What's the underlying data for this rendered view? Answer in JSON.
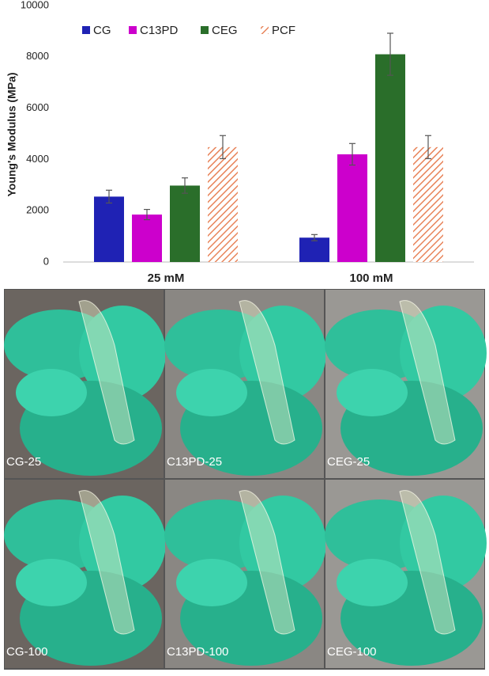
{
  "chart_data": {
    "type": "bar",
    "y_label": "Young's Modulus (MPa)",
    "categories": [
      "25 mM",
      "100 mM"
    ],
    "series": [
      {
        "name": "CG",
        "color": "#1f22b4",
        "values": [
          2550,
          950
        ],
        "errors": [
          250,
          120
        ]
      },
      {
        "name": "C13PD",
        "color": "#cc00cc",
        "values": [
          1850,
          4200
        ],
        "errors": [
          200,
          420
        ]
      },
      {
        "name": "CEG",
        "color": "#2a6e2a",
        "values": [
          2980,
          8100
        ],
        "errors": [
          300,
          820
        ]
      },
      {
        "name": "PCF",
        "color": "#e8845a",
        "hatch": true,
        "values": [
          4480,
          4480
        ],
        "errors": [
          450,
          450
        ]
      }
    ],
    "ylim": [
      0,
      10000
    ],
    "yticks": [
      0,
      2000,
      4000,
      6000,
      8000,
      10000
    ],
    "grid": false
  },
  "photos": [
    "CG-25",
    "C13PD-25",
    "CEG-25",
    "CG-100",
    "C13PD-100",
    "CEG-100"
  ]
}
